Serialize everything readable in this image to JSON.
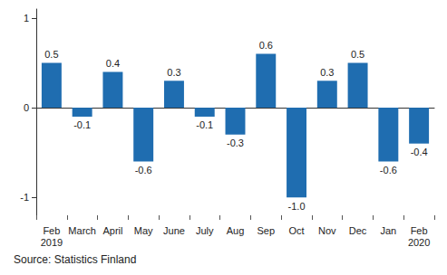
{
  "chart_data": {
    "type": "bar",
    "categories": [
      "Feb\n2019",
      "March",
      "April",
      "May",
      "June",
      "July",
      "Aug",
      "Sep",
      "Oct",
      "Nov",
      "Dec",
      "Jan",
      "Feb\n2020"
    ],
    "values": [
      0.5,
      -0.1,
      0.4,
      -0.6,
      0.3,
      -0.1,
      -0.3,
      0.6,
      -1.0,
      0.3,
      0.5,
      -0.6,
      -0.4
    ],
    "value_labels": [
      "0.5",
      "-0.1",
      "0.4",
      "-0.6",
      "0.3",
      "-0.1",
      "-0.3",
      "0.6",
      "-1.0",
      "0.3",
      "0.5",
      "-0.6",
      "-0.4"
    ],
    "color": "#1f6db0",
    "ylim": [
      -1.2,
      1.1
    ],
    "yticks": [
      -1,
      0,
      1
    ],
    "grid": false,
    "data_labels": true,
    "source": "Source: Statistics Finland"
  }
}
